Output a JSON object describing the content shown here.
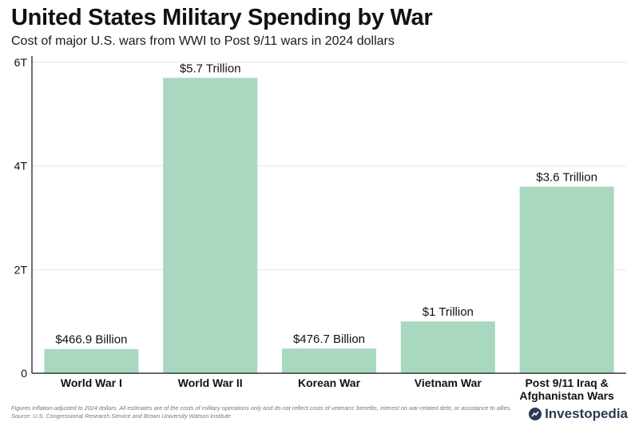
{
  "header": {
    "title": "United States Military Spending by War",
    "subtitle": "Cost of major U.S. wars from WWI to Post 9/11 wars in 2024 dollars"
  },
  "footnote": {
    "line1": "Figures inflation-adjusted to 2024 dollars. All estimates are of the costs of military operations only and do not reflect costs of veterans' benefits, interest on war-related debt, or assistance to allies.",
    "line2": "Source: U.S. Congressional Research Service and Brown University Watson Institute"
  },
  "brand": {
    "name": "Investopedia"
  },
  "colors": {
    "bar": "#a8d8c0",
    "grid": "#e3e3e3",
    "axis": "#111111",
    "text": "#111111"
  },
  "chart_data": {
    "type": "bar",
    "categories": [
      [
        "World War I"
      ],
      [
        "World War II"
      ],
      [
        "Korean War"
      ],
      [
        "Vietnam War"
      ],
      [
        "Post 9/11 Iraq &",
        "Afghanistan Wars"
      ]
    ],
    "values": [
      0.4669,
      5.7,
      0.4767,
      1.0,
      3.6
    ],
    "data_labels": [
      "$466.9 Billion",
      "$5.7 Trillion",
      "$476.7 Billion",
      "$1 Trillion",
      "$3.6 Trillion"
    ],
    "unit": "trillions of 2024 US dollars",
    "ylim": [
      0,
      6
    ],
    "yticks": [
      0,
      2,
      4,
      6
    ],
    "ytick_labels": [
      "0",
      "2T",
      "4T",
      "6T"
    ],
    "grid": true
  }
}
